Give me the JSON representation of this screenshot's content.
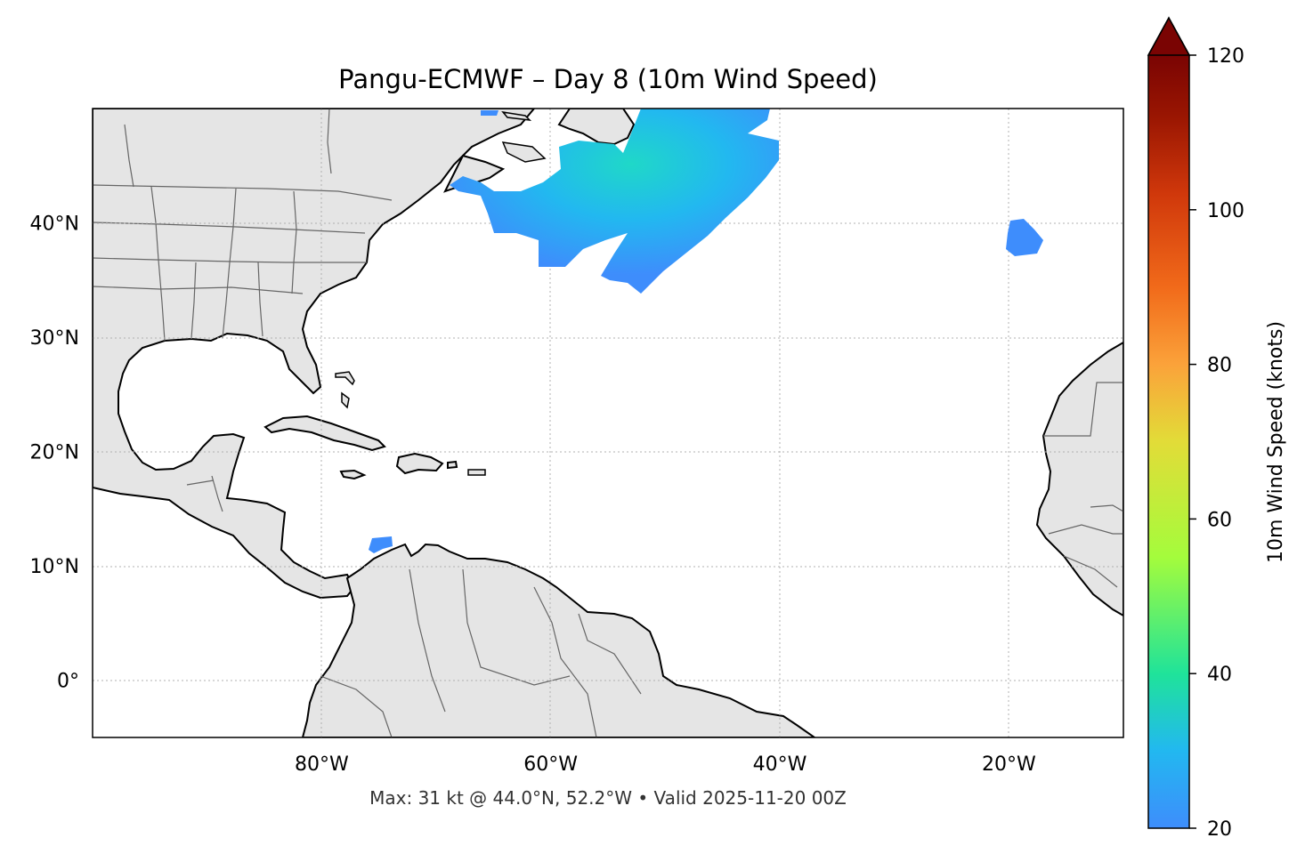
{
  "title": "Pangu-ECMWF – Day 8 (10m Wind Speed)",
  "footer": "Max: 31 kt @ 44.0°N, 52.2°W • Valid 2025-11-20 00Z",
  "map": {
    "extent": {
      "lon_min": -100,
      "lon_max": -10,
      "lat_min": -5,
      "lat_max": 50
    },
    "lat_ticks": [
      {
        "value": 40,
        "label": "40°N"
      },
      {
        "value": 30,
        "label": "30°N"
      },
      {
        "value": 20,
        "label": "20°N"
      },
      {
        "value": 10,
        "label": "10°N"
      },
      {
        "value": 0,
        "label": "0°"
      }
    ],
    "lon_ticks": [
      {
        "value": -80,
        "label": "80°W"
      },
      {
        "value": -60,
        "label": "60°W"
      },
      {
        "value": -40,
        "label": "40°W"
      },
      {
        "value": -20,
        "label": "20°W"
      }
    ],
    "land_color": "#e5e5e5",
    "ocean_color": "#ffffff",
    "gridlines": "dotted",
    "max_point": {
      "lat": 44.0,
      "lon": -52.2,
      "speed_kt": 31
    }
  },
  "colorbar": {
    "label": "10m Wind Speed (knots)",
    "min": 20,
    "max": 120,
    "extend": "max",
    "ticks": [
      {
        "value": 20,
        "label": "20"
      },
      {
        "value": 40,
        "label": "40"
      },
      {
        "value": 60,
        "label": "60"
      },
      {
        "value": 80,
        "label": "80"
      },
      {
        "value": 100,
        "label": "100"
      },
      {
        "value": 120,
        "label": "120"
      }
    ],
    "colors": [
      "#3e8dfc",
      "#22b8f0",
      "#1fe39a",
      "#a4fc3c",
      "#e2dc38",
      "#fba23a",
      "#f16a1a",
      "#d0380b",
      "#9a1602",
      "#7a0403"
    ]
  }
}
